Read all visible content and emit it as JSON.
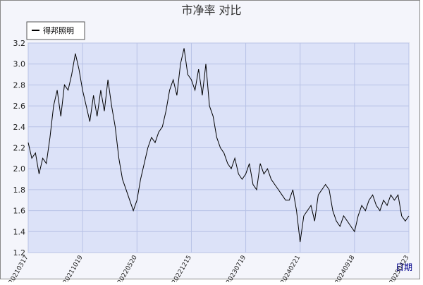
{
  "chart_data": {
    "type": "line",
    "title": "市净率 对比",
    "x_label": "日期",
    "categories": [
      "20210317",
      null,
      null,
      null,
      null,
      null,
      null,
      null,
      null,
      null,
      null,
      null,
      null,
      null,
      null,
      "20211019",
      null,
      null,
      null,
      null,
      null,
      null,
      null,
      null,
      null,
      null,
      null,
      null,
      null,
      null,
      "20220520",
      null,
      null,
      null,
      null,
      null,
      null,
      null,
      null,
      null,
      null,
      null,
      null,
      null,
      null,
      "20221215",
      null,
      null,
      null,
      null,
      null,
      null,
      null,
      null,
      null,
      null,
      null,
      null,
      null,
      null,
      "20230719",
      null,
      null,
      null,
      null,
      null,
      null,
      null,
      null,
      null,
      null,
      null,
      null,
      null,
      null,
      "20240221",
      null,
      null,
      null,
      null,
      null,
      null,
      null,
      null,
      null,
      null,
      null,
      null,
      null,
      null,
      "20240918",
      null,
      null,
      null,
      null,
      null,
      null,
      null,
      null,
      null,
      null,
      null,
      null,
      null,
      null,
      "20250423"
    ],
    "series": [
      {
        "name": "得邦照明",
        "color": "#000000",
        "values": [
          2.25,
          2.1,
          2.15,
          1.95,
          2.1,
          2.05,
          2.3,
          2.6,
          2.75,
          2.5,
          2.8,
          2.75,
          2.9,
          3.1,
          2.95,
          2.75,
          2.6,
          2.45,
          2.7,
          2.5,
          2.75,
          2.55,
          2.85,
          2.6,
          2.4,
          2.1,
          1.9,
          1.8,
          1.7,
          1.6,
          1.7,
          1.9,
          2.05,
          2.2,
          2.3,
          2.25,
          2.35,
          2.4,
          2.55,
          2.75,
          2.85,
          2.7,
          3.0,
          3.15,
          2.9,
          2.85,
          2.75,
          2.95,
          2.7,
          3.0,
          2.6,
          2.5,
          2.3,
          2.2,
          2.15,
          2.05,
          2.0,
          2.1,
          1.95,
          1.9,
          1.95,
          2.05,
          1.85,
          1.8,
          2.05,
          1.95,
          2.0,
          1.9,
          1.85,
          1.8,
          1.75,
          1.7,
          1.7,
          1.8,
          1.6,
          1.3,
          1.55,
          1.6,
          1.65,
          1.5,
          1.75,
          1.8,
          1.85,
          1.8,
          1.6,
          1.5,
          1.45,
          1.55,
          1.5,
          1.45,
          1.4,
          1.55,
          1.65,
          1.6,
          1.7,
          1.75,
          1.65,
          1.6,
          1.7,
          1.65,
          1.75,
          1.7,
          1.75,
          1.55,
          1.5,
          1.55
        ]
      }
    ],
    "ylim": [
      1.2,
      3.2
    ],
    "yticks": [
      1.2,
      1.4,
      1.6,
      1.8,
      {
        "value": 2.0,
        "label": "2.0"
      },
      2.2,
      2.4,
      2.6,
      2.8,
      {
        "value": 3.0,
        "label": "3.0"
      },
      3.2
    ],
    "grid": true
  }
}
